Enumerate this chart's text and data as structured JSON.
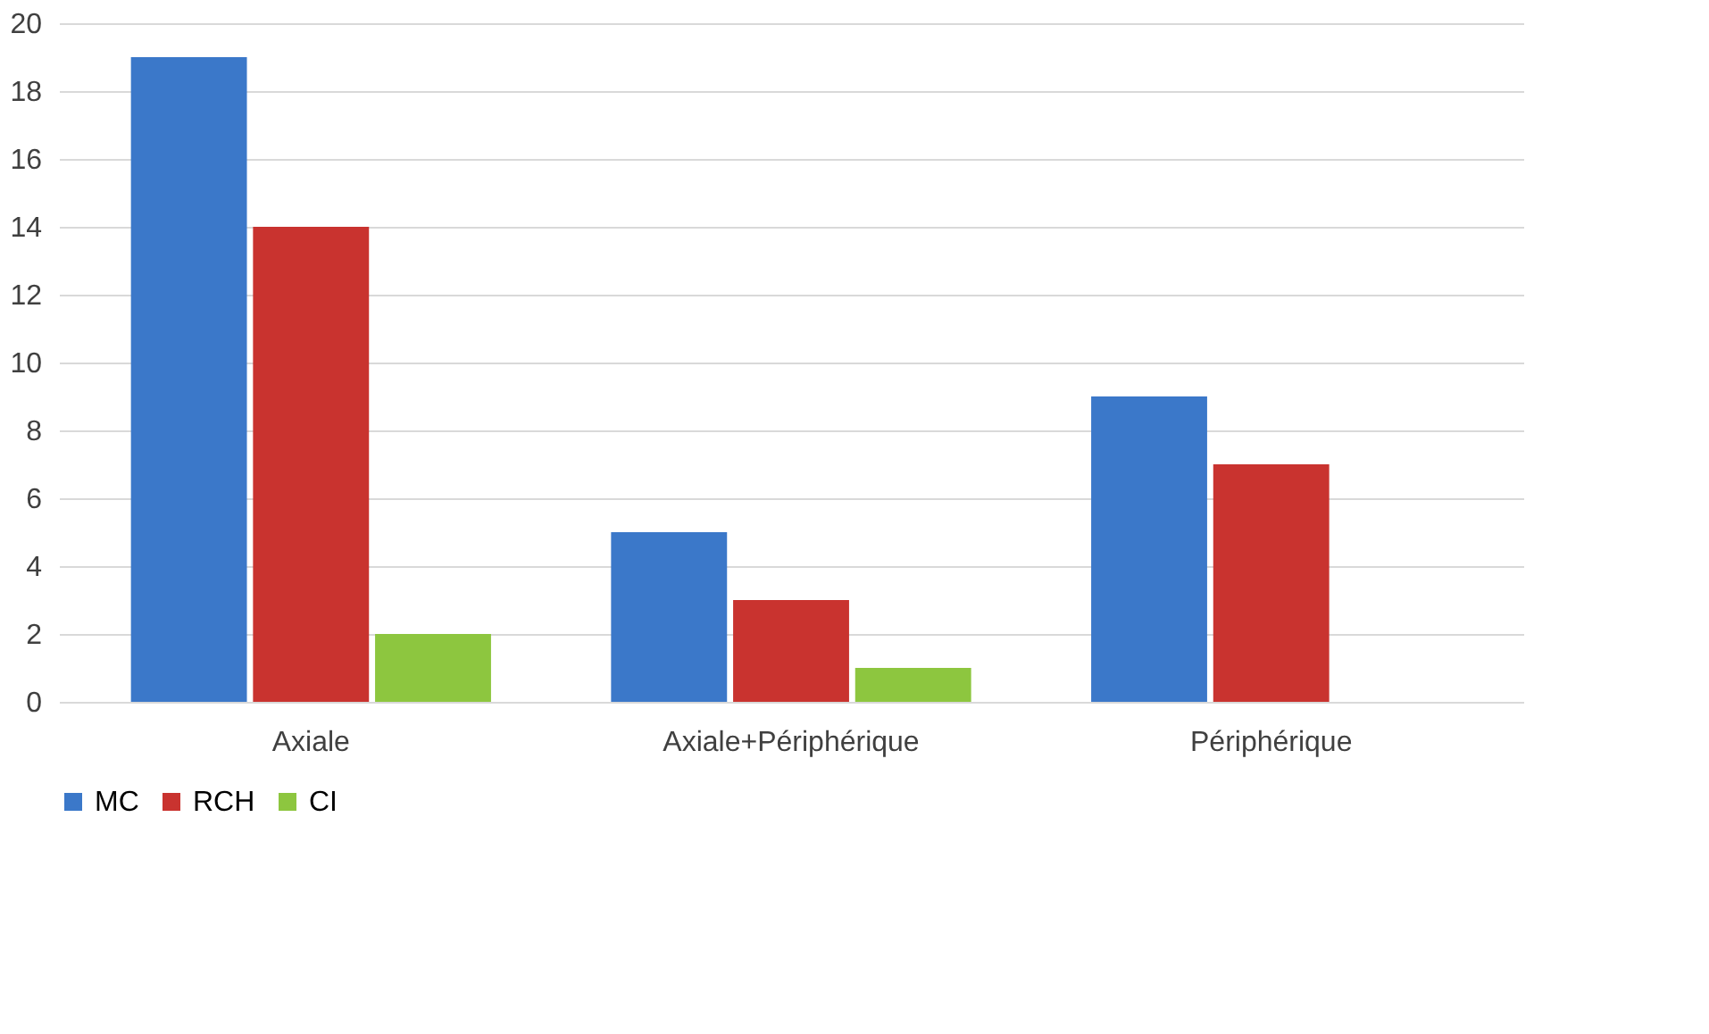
{
  "chart_data": {
    "type": "bar",
    "categories": [
      "Axiale",
      "Axiale+Périphérique",
      "Périphérique"
    ],
    "series": [
      {
        "name": "MC",
        "color": "#3b78c9",
        "values": [
          19,
          5,
          9
        ]
      },
      {
        "name": "RCH",
        "color": "#c9332f",
        "values": [
          14,
          3,
          7
        ]
      },
      {
        "name": "CI",
        "color": "#8dc63f",
        "values": [
          2,
          1,
          0
        ]
      }
    ],
    "ylim": [
      0,
      20
    ],
    "yticks": [
      0,
      2,
      4,
      6,
      8,
      10,
      12,
      14,
      16,
      18,
      20
    ],
    "grid": "y",
    "legend": "bottom"
  }
}
